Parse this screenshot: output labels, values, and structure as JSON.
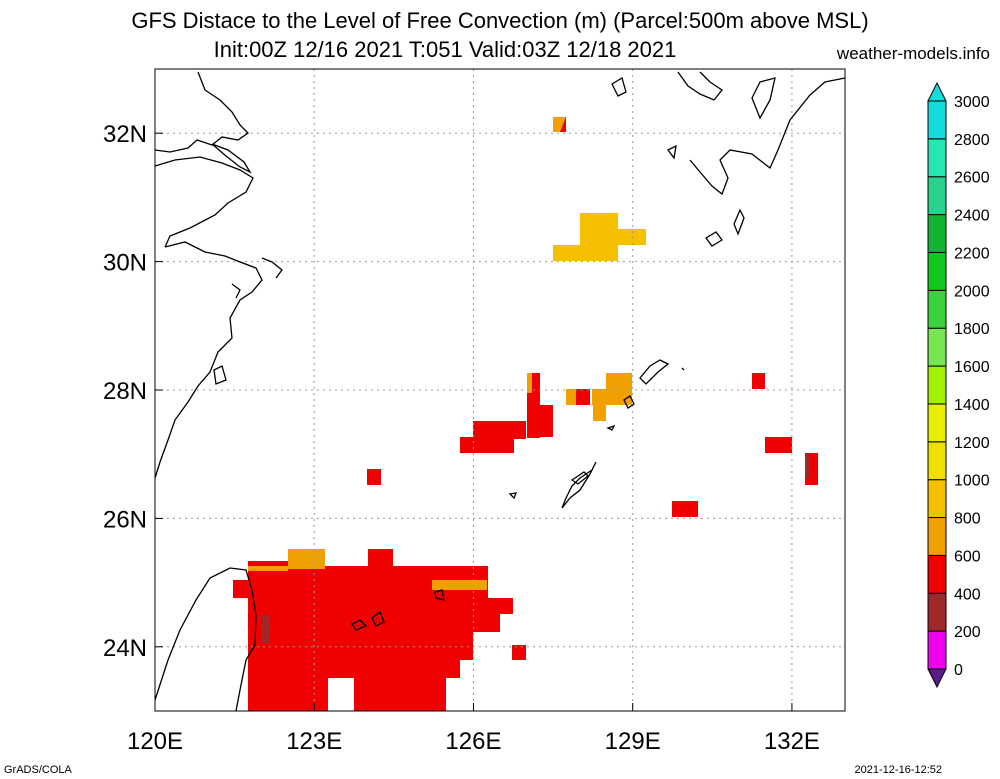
{
  "title_line1": "GFS Distace to the Level of Free Convection (m) (Parcel:500m above MSL)",
  "title_line2": "Init:00Z 12/16 2021 T:051 Valid:03Z 12/18 2021",
  "site": "weather-models.info",
  "footer_left": "GrADS/COLA",
  "footer_right": "2021-12-16-12:52",
  "map": {
    "lon_range": [
      120,
      133
    ],
    "lat_range": [
      23,
      33
    ],
    "x_ticks": [
      "120E",
      "123E",
      "126E",
      "129E",
      "132E"
    ],
    "y_ticks": [
      "24N",
      "26N",
      "28N",
      "30N",
      "32N"
    ],
    "grid": "dotted"
  },
  "colorbar": {
    "levels": [
      "0",
      "200",
      "400",
      "600",
      "800",
      "1000",
      "1200",
      "1400",
      "1600",
      "1800",
      "2000",
      "2200",
      "2400",
      "2600",
      "2800",
      "3000"
    ],
    "colors": [
      "#5a1a8a",
      "#f000f0",
      "#a02828",
      "#f00000",
      "#f0a000",
      "#f5c000",
      "#f0e000",
      "#e6f000",
      "#a0f000",
      "#78e650",
      "#3cd23c",
      "#14c81e",
      "#12b430",
      "#28d28c",
      "#28e6b4",
      "#14dcdc"
    ]
  }
}
